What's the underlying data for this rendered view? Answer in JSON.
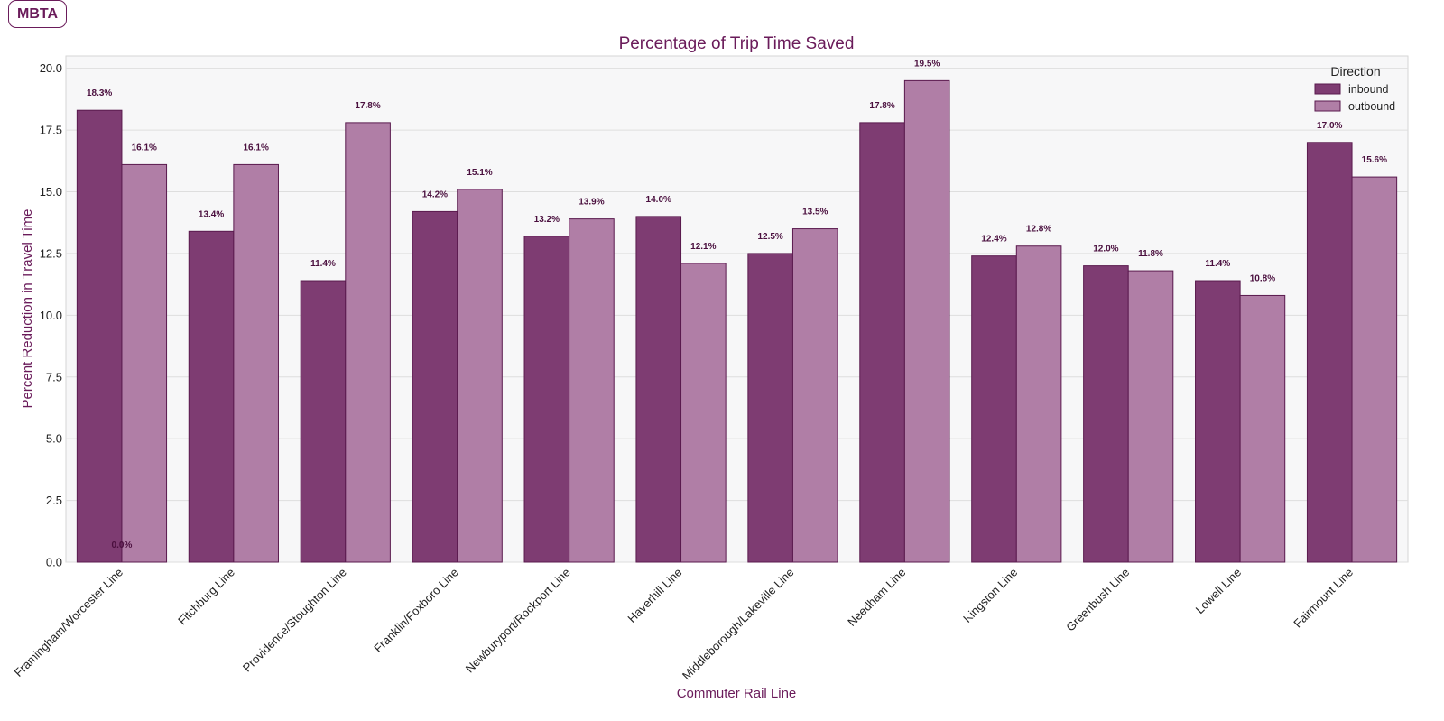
{
  "badge": "MBTA",
  "colors": {
    "inbound": "#7e3c72",
    "outbound": "#b07ea6",
    "edge": "#5a1a4e",
    "accent": "#6a1b5a",
    "plot_bg": "#f7f7f8",
    "grid": "#dedede"
  },
  "chart_data": {
    "type": "bar",
    "title": "Percentage of Trip Time Saved",
    "xlabel": "Commuter Rail Line",
    "ylabel": "Percent Reduction in Travel Time",
    "ylim": [
      0,
      20.5
    ],
    "yticks": [
      "0.0",
      "2.5",
      "5.0",
      "7.5",
      "10.0",
      "12.5",
      "15.0",
      "17.5",
      "20.0"
    ],
    "grid": true,
    "legend": {
      "title": "Direction",
      "position": "top-right"
    },
    "categories": [
      "Framingham/Worcester Line",
      "Fitchburg Line",
      "Providence/Stoughton Line",
      "Franklin/Foxboro Line",
      "Newburyport/Rockport Line",
      "Haverhill Line",
      "Middleborough/Lakeville Line",
      "Needham Line",
      "Kingston Line",
      "Greenbush Line",
      "Lowell Line",
      "Fairmount Line"
    ],
    "series": [
      {
        "name": "inbound",
        "values": [
          18.3,
          13.4,
          11.4,
          14.2,
          13.2,
          14.0,
          12.5,
          17.8,
          12.4,
          12.0,
          11.4,
          17.0
        ],
        "labels": [
          "18.3%",
          "13.4%",
          "11.4%",
          "14.2%",
          "13.2%",
          "14.0%",
          "12.5%",
          "17.8%",
          "12.4%",
          "12.0%",
          "11.4%",
          "17.0%"
        ]
      },
      {
        "name": "outbound",
        "values": [
          16.1,
          16.1,
          17.8,
          15.1,
          13.9,
          12.1,
          13.5,
          19.5,
          12.8,
          11.8,
          10.8,
          15.6
        ],
        "labels": [
          "16.1%",
          "16.1%",
          "17.8%",
          "15.1%",
          "13.9%",
          "12.1%",
          "13.5%",
          "19.5%",
          "12.8%",
          "11.8%",
          "10.8%",
          "15.6%"
        ]
      }
    ],
    "extra_annotations": [
      {
        "category_index": 0,
        "value": 0,
        "label": "0.0%"
      }
    ]
  }
}
